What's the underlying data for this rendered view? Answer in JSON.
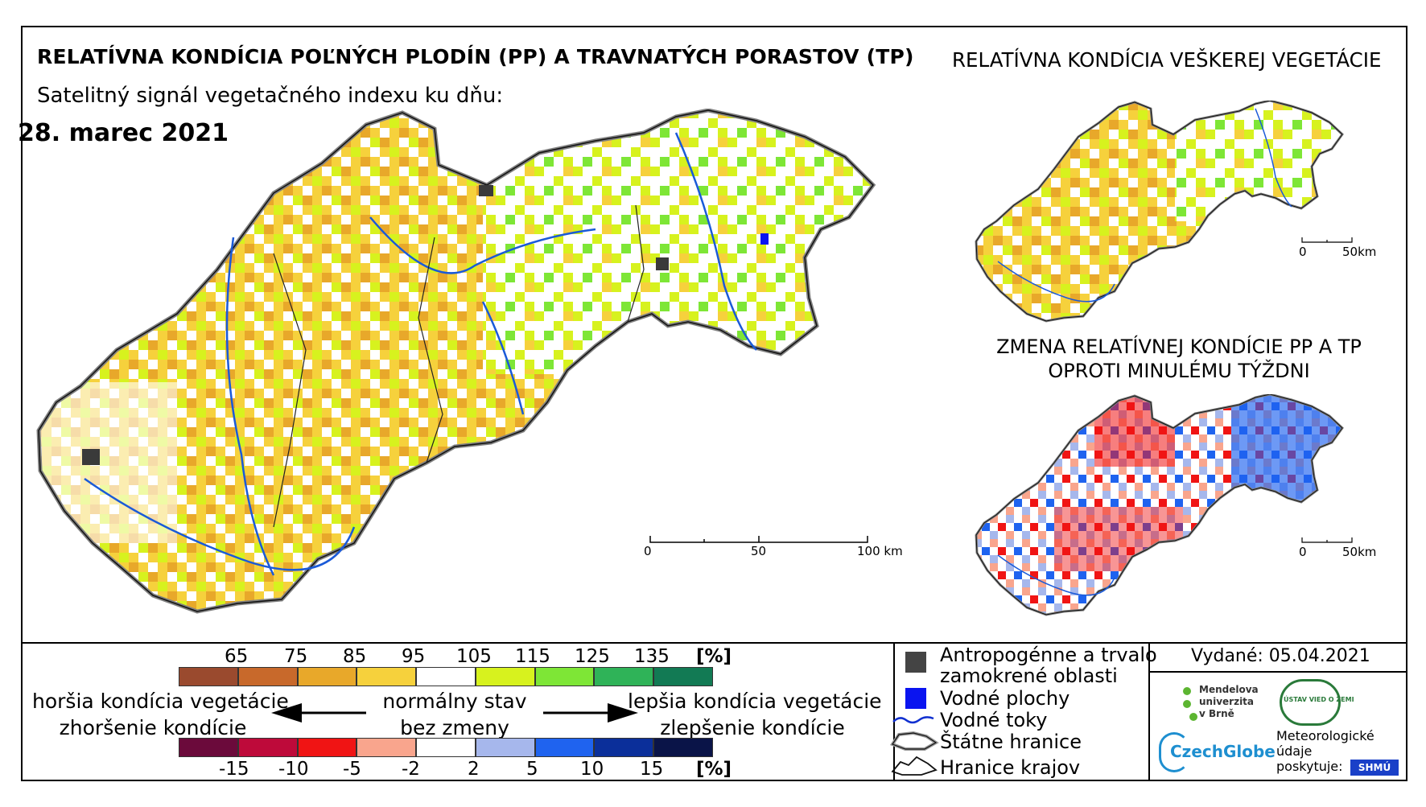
{
  "main": {
    "title": "RELATÍVNA KONDÍCIA POĽNÝCH PLODÍN (PP) A TRAVNATÝCH PORASTOV (TP)",
    "subtitle": "Satelitný signál vegetačného indexu ku dňu:",
    "date": "28. marec 2021",
    "scale_labels": [
      "0",
      "50",
      "100 km"
    ]
  },
  "inset_top": {
    "title": "RELATÍVNA KONDÍCIA VEŠKEREJ VEGETÁCIE",
    "scale_labels": [
      "0",
      "50km"
    ]
  },
  "inset_bottom": {
    "title_line1": "ZMENA RELATÍVNEJ KONDÍCIE PP A TP",
    "title_line2": "OPROTI MINULÉMU TÝŽDNI",
    "scale_labels": [
      "0",
      "50km"
    ]
  },
  "legend": {
    "condition_ticks": [
      "65",
      "75",
      "85",
      "95",
      "105",
      "115",
      "125",
      "135"
    ],
    "condition_unit": "[%]",
    "condition_colors": [
      "#9a4a2e",
      "#c8692b",
      "#e8a82a",
      "#f6d13c",
      "#ffffff",
      "#d7f21e",
      "#7ee636",
      "#2fb358",
      "#127a54"
    ],
    "change_ticks": [
      "-15",
      "-10",
      "-5",
      "-2",
      "2",
      "5",
      "10",
      "15"
    ],
    "change_unit": "[%]",
    "change_colors": [
      "#6b0a3b",
      "#be0a3a",
      "#f01414",
      "#f9a58d",
      "#ffffff",
      "#a6b7ec",
      "#1f63ef",
      "#0b2f9a",
      "#0a1448"
    ],
    "worse_line1": "horšia kondícia vegetácie",
    "worse_line2": "zhoršenie kondície",
    "normal_line1": "normálny stav",
    "normal_line2": "bez zmeny",
    "better_line1": "lepšia kondícia vegetácie",
    "better_line2": "zlepšenie kondície",
    "items": [
      {
        "label": "Antropogénne a trvalo",
        "label2": "zamokrené oblasti",
        "symbol": "urban-square-icon",
        "color": "#444444"
      },
      {
        "label": "Vodné plochy",
        "symbol": "water-square-icon",
        "color": "#0a14f0"
      },
      {
        "label": "Vodné toky",
        "symbol": "river-line-icon",
        "color": "#1030d0"
      },
      {
        "label": "Štátne hranice",
        "symbol": "state-border-icon",
        "color": "#888888"
      },
      {
        "label": "Hranice krajov",
        "symbol": "region-border-icon",
        "color": "#000000"
      }
    ]
  },
  "issued": "Vydané: 05.04.2021",
  "logos": {
    "mendel": [
      "Mendelova",
      "univerzita",
      "v Brně"
    ],
    "czechglobe": "CzechGlobe",
    "ustav": "ÚSTAV VIED O ZEMI",
    "meteo": [
      "Meteorologické",
      "údaje",
      "poskytuje:"
    ],
    "shmu": "SHMÚ"
  },
  "colors": {
    "border": "#000000",
    "river": "#1a5ad8",
    "urban": "#3a3a3a"
  }
}
